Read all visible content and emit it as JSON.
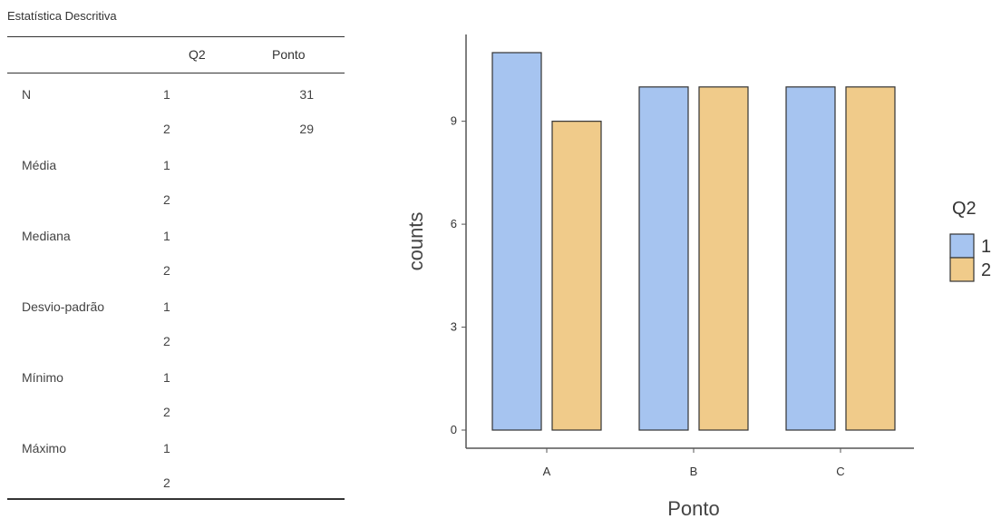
{
  "table": {
    "title": "Estatística Descritiva",
    "headers": {
      "group": "Q2",
      "var": "Ponto"
    },
    "rows": [
      {
        "stat": "N",
        "values": [
          {
            "g": "1",
            "v": "31"
          },
          {
            "g": "2",
            "v": "29"
          }
        ]
      },
      {
        "stat": "Média",
        "values": [
          {
            "g": "1",
            "v": ""
          },
          {
            "g": "2",
            "v": ""
          }
        ]
      },
      {
        "stat": "Mediana",
        "values": [
          {
            "g": "1",
            "v": ""
          },
          {
            "g": "2",
            "v": ""
          }
        ]
      },
      {
        "stat": "Desvio-padrão",
        "values": [
          {
            "g": "1",
            "v": ""
          },
          {
            "g": "2",
            "v": ""
          }
        ]
      },
      {
        "stat": "Mínimo",
        "values": [
          {
            "g": "1",
            "v": ""
          },
          {
            "g": "2",
            "v": ""
          }
        ]
      },
      {
        "stat": "Máximo",
        "values": [
          {
            "g": "1",
            "v": ""
          },
          {
            "g": "2",
            "v": ""
          }
        ]
      }
    ]
  },
  "chart_data": {
    "type": "bar",
    "xlabel": "Ponto",
    "ylabel": "counts",
    "categories": [
      "A",
      "B",
      "C"
    ],
    "ylim": [
      0,
      11
    ],
    "yticks": [
      0,
      3,
      6,
      9
    ],
    "legend": {
      "title": "Q2",
      "position": "right"
    },
    "series": [
      {
        "name": "1",
        "color": "#a6c4f0",
        "values": [
          11,
          10,
          10
        ]
      },
      {
        "name": "2",
        "color": "#f0cb8a",
        "values": [
          9,
          10,
          10
        ]
      }
    ]
  }
}
